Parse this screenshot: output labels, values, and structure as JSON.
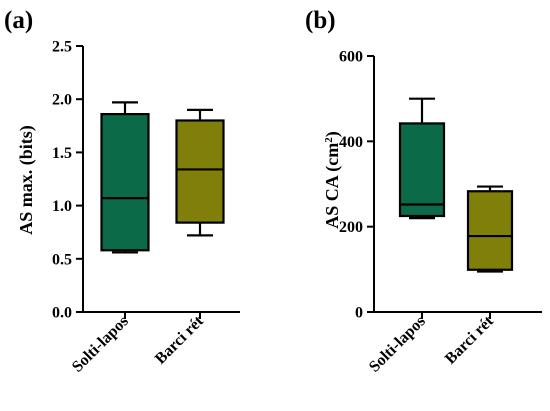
{
  "colors": {
    "solti": "#0b6a47",
    "barci": "#7f7f0a",
    "stroke": "#000000"
  },
  "chart_data": [
    {
      "type": "boxplot",
      "panel_label": "(a)",
      "ylabel": "AS max. (bits)",
      "ylim": [
        0,
        2.5
      ],
      "yticks": [
        "0.0",
        "0.5",
        "1.0",
        "1.5",
        "2.0",
        "2.5"
      ],
      "yticks_values": [
        0,
        0.5,
        1.0,
        1.5,
        2.0,
        2.5
      ],
      "categories": [
        "Solti-lapos",
        "Barci rét"
      ],
      "boxes": [
        {
          "category": "Solti-lapos",
          "min": 0.56,
          "q1": 0.58,
          "median": 1.07,
          "q3": 1.86,
          "max": 1.97,
          "color_key": "solti"
        },
        {
          "category": "Barci rét",
          "min": 0.72,
          "q1": 0.84,
          "median": 1.34,
          "q3": 1.8,
          "max": 1.9,
          "color_key": "barci"
        }
      ]
    },
    {
      "type": "boxplot",
      "panel_label": "(b)",
      "ylabel_main": "AS CA (cm",
      "ylabel_sup": "2",
      "ylabel_close": ")",
      "ylim": [
        0,
        600
      ],
      "yticks": [
        "0",
        "200",
        "400",
        "600"
      ],
      "yticks_values": [
        0,
        200,
        400,
        600
      ],
      "categories": [
        "Solti-lapos",
        "Barci rét"
      ],
      "boxes": [
        {
          "category": "Solti-lapos",
          "min": 220,
          "q1": 225,
          "median": 252,
          "q3": 442,
          "max": 500,
          "color_key": "solti"
        },
        {
          "category": "Barci rét",
          "min": 95,
          "q1": 99,
          "median": 178,
          "q3": 283,
          "max": 294,
          "color_key": "barci"
        }
      ]
    }
  ]
}
